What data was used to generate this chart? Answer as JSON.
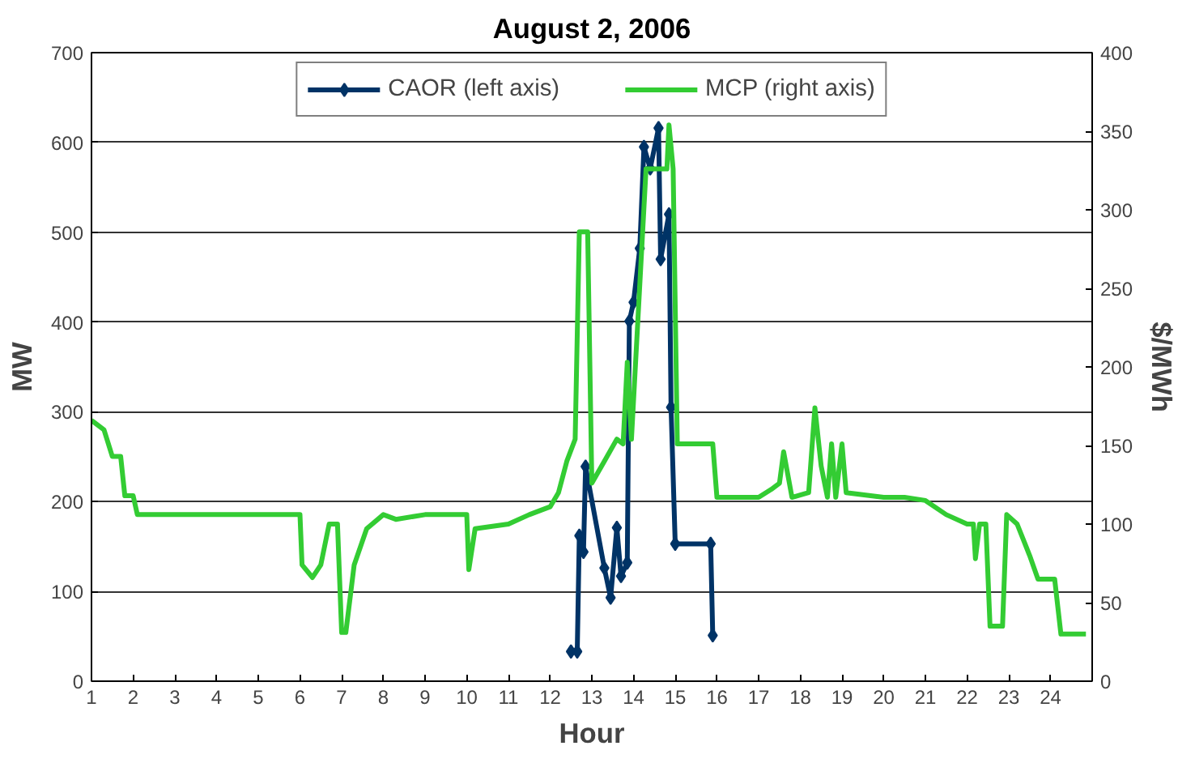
{
  "chart_data": {
    "type": "line",
    "title": "August 2, 2006",
    "xlabel": "Hour",
    "ylabel": "MW",
    "y2label": "$/MWh",
    "xlim": [
      1,
      25
    ],
    "xticks": [
      1,
      2,
      3,
      4,
      5,
      6,
      7,
      8,
      9,
      10,
      11,
      12,
      13,
      14,
      15,
      16,
      17,
      18,
      19,
      20,
      21,
      22,
      23,
      24
    ],
    "ylim": [
      0,
      700
    ],
    "yticks": [
      0,
      100,
      200,
      300,
      400,
      500,
      600,
      700
    ],
    "y2lim": [
      0,
      400
    ],
    "y2ticks": [
      0,
      50,
      100,
      150,
      200,
      250,
      300,
      350,
      400
    ],
    "grid": "y",
    "legend": "top",
    "line_style": "solid",
    "series": [
      {
        "name": "CAOR (left axis)",
        "color": "#003366",
        "marker": "diamond",
        "x": [
          12.5,
          12.65,
          12.7,
          12.8,
          12.85,
          13.3,
          13.45,
          13.6,
          13.7,
          13.85,
          13.9,
          14.0,
          14.15,
          14.25,
          14.4,
          14.6,
          14.65,
          14.85,
          14.9,
          15.0,
          15.85,
          15.9
        ],
        "values": [
          33,
          33,
          162,
          144,
          239,
          126,
          93,
          171,
          117,
          132,
          401,
          422,
          482,
          595,
          571,
          616,
          470,
          520,
          305,
          153,
          153,
          51
        ]
      },
      {
        "name": "MCP (right axis)",
        "color": "#33cc33",
        "marker": "none",
        "axis": "y2",
        "x": [
          1.0,
          1.3,
          1.5,
          1.7,
          1.8,
          2.0,
          2.1,
          6.0,
          6.05,
          6.3,
          6.5,
          6.7,
          6.9,
          7.0,
          7.1,
          7.3,
          7.6,
          8.0,
          8.3,
          9.0,
          10.0,
          10.05,
          10.2,
          11.0,
          11.5,
          12.0,
          12.2,
          12.4,
          12.6,
          12.7,
          12.9,
          13.0,
          13.3,
          13.6,
          13.75,
          13.85,
          13.95,
          14.3,
          14.8,
          14.85,
          14.95,
          15.05,
          15.9,
          16.0,
          17.0,
          17.3,
          17.5,
          17.6,
          17.8,
          18.2,
          18.35,
          18.5,
          18.65,
          18.75,
          18.85,
          19.0,
          19.1,
          20.0,
          20.5,
          21.0,
          21.5,
          22.0,
          22.15,
          22.2,
          22.3,
          22.45,
          22.55,
          22.85,
          22.95,
          23.2,
          23.5,
          23.7,
          24.1,
          24.25,
          24.85
        ],
        "values": [
          166,
          160,
          143,
          143,
          118,
          118,
          106,
          106,
          74,
          66,
          74,
          100,
          100,
          31,
          31,
          74,
          97,
          106,
          103,
          106,
          106,
          71,
          97,
          100,
          106,
          111,
          120,
          140,
          154,
          286,
          286,
          126,
          140,
          154,
          151,
          203,
          154,
          326,
          326,
          354,
          326,
          151,
          151,
          117,
          117,
          122,
          126,
          146,
          117,
          120,
          174,
          137,
          117,
          151,
          117,
          151,
          120,
          117,
          117,
          115,
          106,
          100,
          100,
          78,
          100,
          100,
          35,
          35,
          106,
          100,
          80,
          65,
          65,
          30,
          30
        ]
      }
    ]
  }
}
